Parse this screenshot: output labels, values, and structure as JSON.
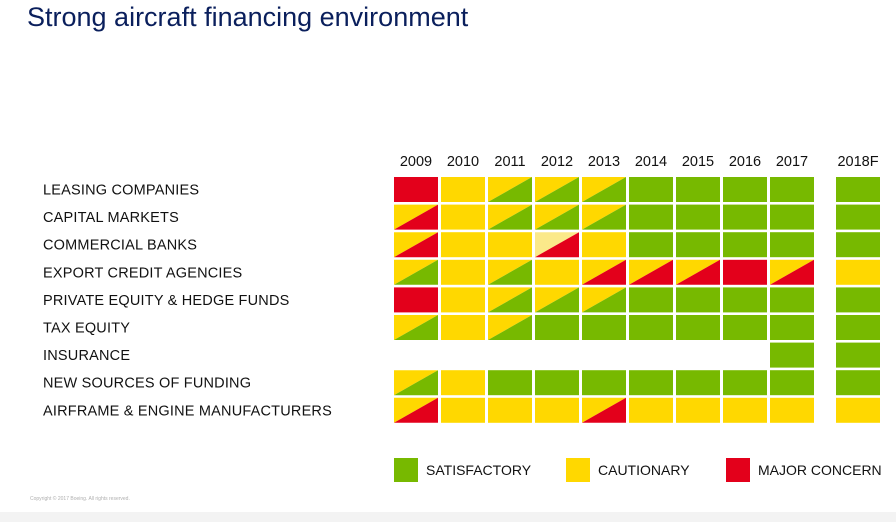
{
  "title": "Strong aircraft financing environment",
  "copyright": "Copyright © 2017 Boeing. All rights reserved.",
  "colors": {
    "satisfactory": "#77b900",
    "cautionary": "#ffd800",
    "major_concern": "#e3001b",
    "light_yellow": "#fbe98a"
  },
  "chart_data": {
    "type": "heatmap",
    "columns": [
      "2009",
      "2010",
      "2011",
      "2012",
      "2013",
      "2014",
      "2015",
      "2016",
      "2017",
      "2018F"
    ],
    "rows": [
      {
        "label": "LEASING COMPANIES",
        "cells": [
          "R",
          "Y",
          "YG",
          "YG",
          "YG",
          "G",
          "G",
          "G",
          "G",
          "G"
        ]
      },
      {
        "label": "CAPITAL MARKETS",
        "cells": [
          "YR",
          "Y",
          "YG",
          "YG",
          "YG",
          "G",
          "G",
          "G",
          "G",
          "G"
        ]
      },
      {
        "label": "COMMERCIAL BANKS",
        "cells": [
          "YR",
          "Y",
          "Y",
          "LR",
          "Y",
          "G",
          "G",
          "G",
          "G",
          "G"
        ]
      },
      {
        "label": "EXPORT CREDIT AGENCIES",
        "cells": [
          "YG",
          "Y",
          "YG",
          "Y",
          "YR",
          "YR",
          "YR",
          "R",
          "YR",
          "Y"
        ]
      },
      {
        "label": "PRIVATE EQUITY & HEDGE FUNDS",
        "cells": [
          "R",
          "Y",
          "YG",
          "YG",
          "YG",
          "G",
          "G",
          "G",
          "G",
          "G"
        ]
      },
      {
        "label": "TAX EQUITY",
        "cells": [
          "YG",
          "Y",
          "YG",
          "G",
          "G",
          "G",
          "G",
          "G",
          "G",
          "G"
        ]
      },
      {
        "label": "INSURANCE",
        "cells": [
          "",
          "",
          "",
          "",
          "",
          "",
          "",
          "",
          "G",
          "G"
        ]
      },
      {
        "label": "NEW SOURCES OF FUNDING",
        "cells": [
          "YG",
          "Y",
          "G",
          "G",
          "G",
          "G",
          "G",
          "G",
          "G",
          "G"
        ]
      },
      {
        "label": "AIRFRAME & ENGINE MANUFACTURERS",
        "cells": [
          "YR",
          "Y",
          "Y",
          "Y",
          "YR",
          "Y",
          "Y",
          "Y",
          "Y",
          "Y"
        ]
      }
    ],
    "legend": [
      {
        "key": "G",
        "label": "SATISFACTORY"
      },
      {
        "key": "Y",
        "label": "CAUTIONARY"
      },
      {
        "key": "R",
        "label": "MAJOR CONCERN"
      }
    ]
  }
}
